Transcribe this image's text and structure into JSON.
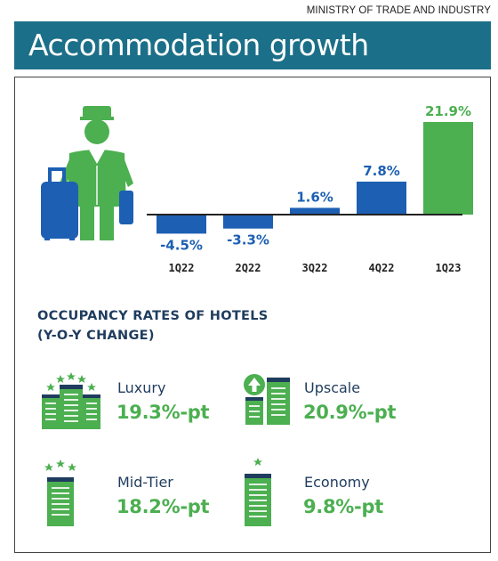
{
  "source": "MINISTRY OF TRADE AND INDUSTRY",
  "title": "Accommodation growth",
  "chart_data": {
    "type": "bar",
    "categories": [
      "1Q22",
      "2Q22",
      "3Q22",
      "4Q22",
      "1Q23"
    ],
    "values": [
      -4.5,
      -3.3,
      1.6,
      7.8,
      21.9
    ],
    "value_labels": [
      "-4.5%",
      "-3.3%",
      "1.6%",
      "7.8%",
      "21.9%"
    ],
    "colors": [
      "#1d5fb3",
      "#1d5fb3",
      "#1d5fb3",
      "#1d5fb3",
      "#4caf50"
    ],
    "ylim": [
      -6,
      24
    ],
    "grid": false,
    "title": "",
    "xlabel": "",
    "ylabel": ""
  },
  "occupancy": {
    "title_line1": "OCCUPANCY RATES OF HOTELS",
    "title_line2": "(Y-O-Y CHANGE)",
    "items": [
      {
        "label": "Luxury",
        "value": "19.3%-pt",
        "icon": "luxury-hotel-icon"
      },
      {
        "label": "Upscale",
        "value": "20.9%-pt",
        "icon": "upscale-hotel-icon"
      },
      {
        "label": "Mid-Tier",
        "value": "18.2%-pt",
        "icon": "midtier-hotel-icon"
      },
      {
        "label": "Economy",
        "value": "9.8%-pt",
        "icon": "economy-hotel-icon"
      }
    ]
  },
  "colors": {
    "accent": "#4caf50",
    "bar_blue": "#1d5fb3",
    "title_bar": "#1c6f88",
    "navy_text": "#1f3c5e"
  }
}
